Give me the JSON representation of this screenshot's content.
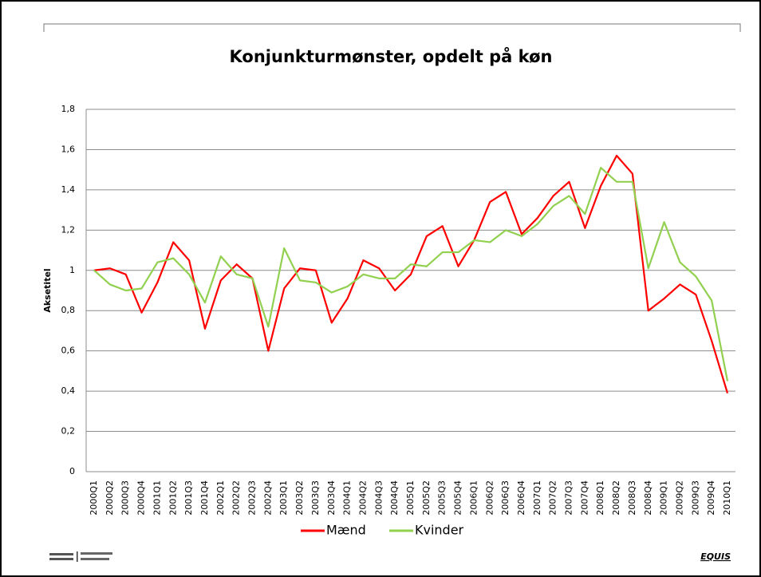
{
  "chart_data": {
    "type": "line",
    "title": "Konjunkturmønster, opdelt på køn",
    "y_label": "Aksetitel",
    "categories": [
      "2000Q1",
      "2000Q2",
      "2000Q3",
      "2000Q4",
      "2001Q1",
      "2001Q2",
      "2001Q3",
      "2001Q4",
      "2002Q1",
      "2002Q2",
      "2002Q3",
      "2002Q4",
      "2003Q1",
      "2003Q2",
      "2003Q3",
      "2003Q4",
      "2004Q1",
      "2004Q2",
      "2004Q3",
      "2004Q4",
      "2005Q1",
      "2005Q2",
      "2005Q3",
      "2005Q4",
      "2006Q1",
      "2006Q2",
      "2006Q3",
      "2006Q4",
      "2007Q1",
      "2007Q2",
      "2007Q3",
      "2007Q4",
      "2008Q1",
      "2008Q2",
      "2008Q3",
      "2008Q4",
      "2009Q1",
      "2009Q2",
      "2009Q3",
      "2009Q4",
      "2010Q1"
    ],
    "series": [
      {
        "name": "Mænd",
        "color": "#ff0000",
        "values": [
          1.0,
          1.01,
          0.98,
          0.79,
          0.94,
          1.14,
          1.05,
          0.71,
          0.95,
          1.03,
          0.96,
          0.6,
          0.91,
          1.01,
          1.0,
          0.74,
          0.86,
          1.05,
          1.01,
          0.9,
          0.98,
          1.17,
          1.22,
          1.02,
          1.15,
          1.34,
          1.39,
          1.18,
          1.26,
          1.37,
          1.44,
          1.21,
          1.42,
          1.57,
          1.48,
          0.8,
          0.86,
          0.93,
          0.88,
          0.65,
          0.39
        ]
      },
      {
        "name": "Kvinder",
        "color": "#92d050",
        "values": [
          1.0,
          0.93,
          0.9,
          0.91,
          1.04,
          1.06,
          0.98,
          0.84,
          1.07,
          0.98,
          0.96,
          0.72,
          1.11,
          0.95,
          0.94,
          0.89,
          0.92,
          0.98,
          0.96,
          0.96,
          1.03,
          1.02,
          1.09,
          1.09,
          1.15,
          1.14,
          1.2,
          1.17,
          1.23,
          1.32,
          1.37,
          1.28,
          1.51,
          1.44,
          1.44,
          1.01,
          1.24,
          1.04,
          0.97,
          0.85,
          0.45
        ]
      }
    ],
    "ylim": [
      0,
      1.8
    ],
    "yticks": [
      0,
      {
        "value": 0.2,
        "label": "0,2"
      },
      {
        "value": 0.4,
        "label": "0,4"
      },
      {
        "value": 0.6,
        "label": "0,6"
      },
      {
        "value": 0.8,
        "label": "0,8"
      },
      1,
      {
        "value": 1.2,
        "label": "1,2"
      },
      {
        "value": 1.4,
        "label": "1,4"
      },
      {
        "value": 1.6,
        "label": "1,6"
      },
      {
        "value": 1.8,
        "label": "1,8"
      }
    ],
    "grid": true,
    "legend": "bottom"
  },
  "footer": {
    "logo": "EQUIS"
  }
}
